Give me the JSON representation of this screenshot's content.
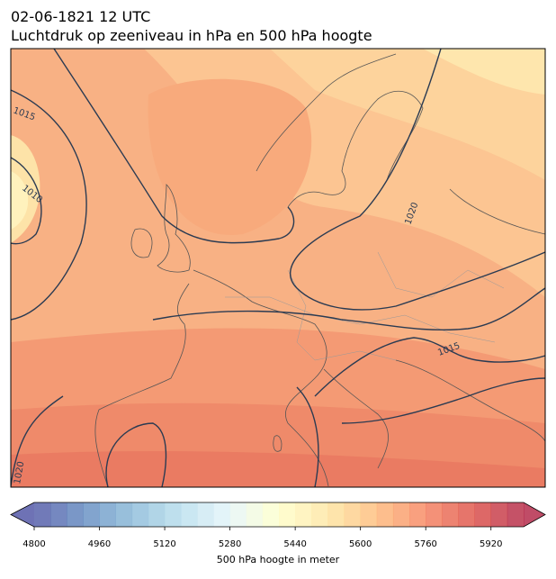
{
  "title": {
    "line1": "02-06-1821 12 UTC",
    "line2": "Luchtdruk op zeeniveau in hPa en 500 hPa hoogte"
  },
  "map": {
    "isobar_labels": [
      "1015",
      "1010",
      "1020",
      "1015",
      "1020"
    ]
  },
  "colorbar": {
    "label": "500 hPa hoogte in meter",
    "lim": [
      4800,
      6000
    ],
    "ticks": [
      4800,
      4960,
      5120,
      5280,
      5440,
      5600,
      5760,
      5920
    ],
    "step": 40,
    "cmap_stops": [
      "#313695",
      "#4575b4",
      "#74add1",
      "#abd9e9",
      "#e0f3f8",
      "#ffffbf",
      "#fee090",
      "#fdae61",
      "#f46d43",
      "#d73027",
      "#a50026"
    ],
    "alpha": 0.7
  }
}
